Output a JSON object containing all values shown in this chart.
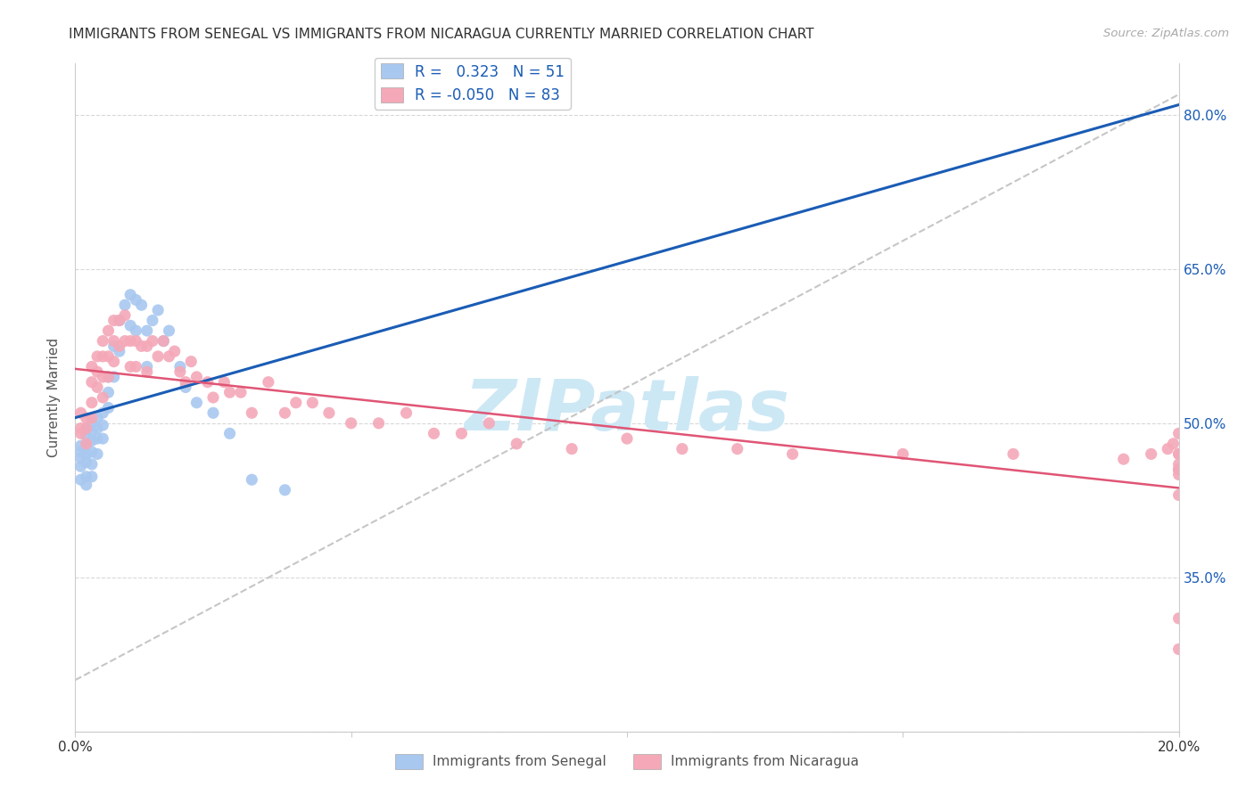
{
  "title": "IMMIGRANTS FROM SENEGAL VS IMMIGRANTS FROM NICARAGUA CURRENTLY MARRIED CORRELATION CHART",
  "source": "Source: ZipAtlas.com",
  "ylabel": "Currently Married",
  "xlim": [
    0.0,
    0.2
  ],
  "ylim": [
    0.2,
    0.85
  ],
  "x_tick_positions": [
    0.0,
    0.05,
    0.1,
    0.15,
    0.2
  ],
  "x_tick_labels": [
    "0.0%",
    "",
    "",
    "",
    "20.0%"
  ],
  "y_tick_positions": [
    0.2,
    0.35,
    0.5,
    0.65,
    0.8
  ],
  "y_tick_labels_right": [
    "",
    "35.0%",
    "50.0%",
    "65.0%",
    "80.0%"
  ],
  "senegal_color": "#a8c8f0",
  "nicaragua_color": "#f4a8b8",
  "senegal_line_color": "#1a5cb5",
  "nicaragua_line_color": "#e05575",
  "ref_line_color": "#c0c0c0",
  "senegal_R": "0.323",
  "senegal_N": "51",
  "nicaragua_R": "-0.050",
  "nicaragua_N": "83",
  "legend_text_color": "#1a5cb5",
  "watermark_text": "ZIPatlas",
  "watermark_color": "#cde8f5",
  "grid_color": "#d8d8d8",
  "spine_color": "#cccccc",
  "title_color": "#333333",
  "source_color": "#aaaaaa",
  "ylabel_color": "#555555",
  "bottom_legend_color": "#555555",
  "right_tick_color": "#1a5cb5",
  "senegal_x": [
    0.001,
    0.001,
    0.001,
    0.001,
    0.001,
    0.002,
    0.002,
    0.002,
    0.002,
    0.002,
    0.002,
    0.002,
    0.003,
    0.003,
    0.003,
    0.003,
    0.003,
    0.003,
    0.004,
    0.004,
    0.004,
    0.004,
    0.005,
    0.005,
    0.005,
    0.006,
    0.006,
    0.006,
    0.007,
    0.007,
    0.008,
    0.008,
    0.009,
    0.01,
    0.01,
    0.011,
    0.011,
    0.012,
    0.013,
    0.013,
    0.014,
    0.015,
    0.016,
    0.017,
    0.019,
    0.02,
    0.022,
    0.025,
    0.028,
    0.032,
    0.038
  ],
  "senegal_y": [
    0.478,
    0.472,
    0.466,
    0.458,
    0.445,
    0.495,
    0.488,
    0.48,
    0.47,
    0.462,
    0.448,
    0.44,
    0.5,
    0.492,
    0.483,
    0.472,
    0.46,
    0.448,
    0.505,
    0.495,
    0.485,
    0.47,
    0.51,
    0.498,
    0.485,
    0.545,
    0.53,
    0.515,
    0.575,
    0.545,
    0.6,
    0.57,
    0.615,
    0.625,
    0.595,
    0.62,
    0.59,
    0.615,
    0.59,
    0.555,
    0.6,
    0.61,
    0.58,
    0.59,
    0.555,
    0.535,
    0.52,
    0.51,
    0.49,
    0.445,
    0.435
  ],
  "nicaragua_x": [
    0.001,
    0.001,
    0.001,
    0.002,
    0.002,
    0.002,
    0.003,
    0.003,
    0.003,
    0.003,
    0.004,
    0.004,
    0.004,
    0.005,
    0.005,
    0.005,
    0.005,
    0.006,
    0.006,
    0.006,
    0.007,
    0.007,
    0.007,
    0.008,
    0.008,
    0.009,
    0.009,
    0.01,
    0.01,
    0.011,
    0.011,
    0.012,
    0.013,
    0.013,
    0.014,
    0.015,
    0.016,
    0.017,
    0.018,
    0.019,
    0.02,
    0.021,
    0.022,
    0.024,
    0.025,
    0.027,
    0.028,
    0.03,
    0.032,
    0.035,
    0.038,
    0.04,
    0.043,
    0.046,
    0.05,
    0.055,
    0.06,
    0.065,
    0.07,
    0.075,
    0.08,
    0.09,
    0.1,
    0.11,
    0.12,
    0.13,
    0.15,
    0.17,
    0.19,
    0.195,
    0.198,
    0.199,
    0.2,
    0.2,
    0.2,
    0.2,
    0.2,
    0.2,
    0.2,
    0.2,
    0.2,
    0.2,
    0.2
  ],
  "nicaragua_y": [
    0.49,
    0.51,
    0.495,
    0.505,
    0.495,
    0.48,
    0.555,
    0.54,
    0.52,
    0.505,
    0.565,
    0.55,
    0.535,
    0.58,
    0.565,
    0.545,
    0.525,
    0.59,
    0.565,
    0.545,
    0.6,
    0.58,
    0.56,
    0.6,
    0.575,
    0.605,
    0.58,
    0.58,
    0.555,
    0.58,
    0.555,
    0.575,
    0.575,
    0.55,
    0.58,
    0.565,
    0.58,
    0.565,
    0.57,
    0.55,
    0.54,
    0.56,
    0.545,
    0.54,
    0.525,
    0.54,
    0.53,
    0.53,
    0.51,
    0.54,
    0.51,
    0.52,
    0.52,
    0.51,
    0.5,
    0.5,
    0.51,
    0.49,
    0.49,
    0.5,
    0.48,
    0.475,
    0.485,
    0.475,
    0.475,
    0.47,
    0.47,
    0.47,
    0.465,
    0.47,
    0.475,
    0.48,
    0.455,
    0.43,
    0.47,
    0.49,
    0.455,
    0.47,
    0.455,
    0.46,
    0.45,
    0.28,
    0.31
  ]
}
